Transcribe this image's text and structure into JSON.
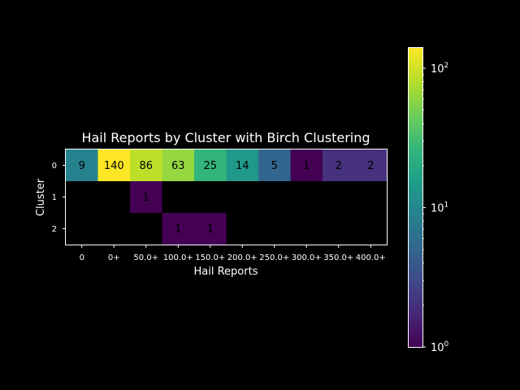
{
  "chart_data": {
    "type": "heatmap",
    "title": "Hail Reports by Cluster with Birch Clustering",
    "xlabel": "Hail Reports",
    "ylabel": "Cluster",
    "x_categories": [
      "0",
      "0+",
      "50.0+",
      "100.0+",
      "150.0+",
      "200.0+",
      "250.0+",
      "300.0+",
      "350.0+",
      "400.0+"
    ],
    "y_categories": [
      "0",
      "1",
      "2"
    ],
    "values": [
      [
        9,
        140,
        86,
        63,
        25,
        14,
        5,
        1,
        2,
        2
      ],
      [
        null,
        null,
        1,
        null,
        null,
        null,
        null,
        null,
        null,
        null
      ],
      [
        null,
        null,
        null,
        1,
        1,
        null,
        null,
        null,
        null,
        null
      ]
    ],
    "colorbar": {
      "scale": "log",
      "colormap": "viridis",
      "range": [
        1,
        140
      ],
      "ticks": [
        {
          "base": "10",
          "exp": "0"
        },
        {
          "base": "10",
          "exp": "1"
        },
        {
          "base": "10",
          "exp": "2"
        }
      ]
    },
    "colors": {
      "background": "#000000",
      "foreground": "#ffffff",
      "empty_cell": "#000000"
    }
  }
}
